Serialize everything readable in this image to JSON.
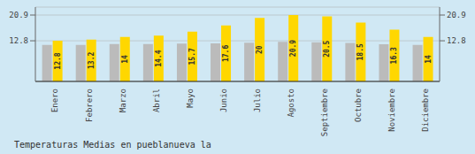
{
  "chart_data": {
    "type": "bar",
    "title": "Temperaturas Medias en pueblanueva la",
    "categories": [
      "Enero",
      "Febrero",
      "Marzo",
      "Abril",
      "Mayo",
      "Junio",
      "Julio",
      "Agosto",
      "Septiembre",
      "Octubre",
      "Noviembre",
      "Diciembre"
    ],
    "series": [
      {
        "color": "#BBBBBB",
        "values": [
          11.5,
          11.5,
          11.8,
          11.8,
          11.9,
          12.0,
          12.2,
          12.5,
          12.3,
          12.1,
          11.7,
          11.5
        ]
      },
      {
        "color": "#FFD700",
        "values": [
          12.8,
          13.2,
          14.0,
          14.4,
          15.7,
          17.6,
          20.0,
          20.9,
          20.5,
          18.5,
          16.3,
          14.0
        ],
        "data_labels": true
      }
    ],
    "ylim": [
      0,
      23.408
    ],
    "yticks": [
      12.8,
      20.9
    ],
    "y2lim": [
      0,
      23.408
    ],
    "y2ticks": [
      12.8,
      20.9
    ],
    "grid": true
  }
}
